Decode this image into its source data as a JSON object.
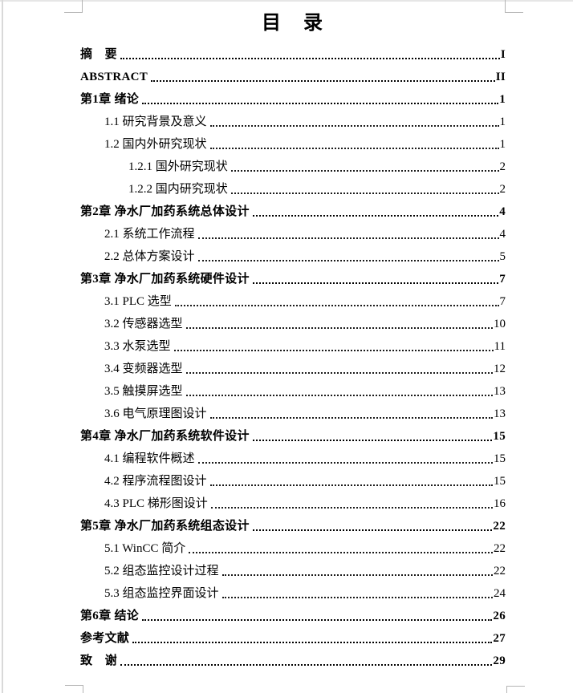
{
  "toc": {
    "title": "目　录",
    "entries": [
      {
        "label": "摘　要",
        "page": "I",
        "level": 1,
        "bold": true
      },
      {
        "label": "ABSTRACT",
        "page": "II",
        "level": 1,
        "bold": true
      },
      {
        "label": "第1章 绪论",
        "page": "1",
        "level": 1,
        "bold": true
      },
      {
        "label": "1.1 研究背景及意义",
        "page": "1",
        "level": 2,
        "bold": false
      },
      {
        "label": "1.2 国内外研究现状",
        "page": "1",
        "level": 2,
        "bold": false
      },
      {
        "label": "1.2.1 国外研究现状",
        "page": "2",
        "level": 3,
        "bold": false
      },
      {
        "label": "1.2.2 国内研究现状",
        "page": "2",
        "level": 3,
        "bold": false
      },
      {
        "label": "第2章 净水厂加药系统总体设计",
        "page": "4",
        "level": 1,
        "bold": true
      },
      {
        "label": "2.1 系统工作流程",
        "page": "4",
        "level": 2,
        "bold": false
      },
      {
        "label": "2.2 总体方案设计",
        "page": "5",
        "level": 2,
        "bold": false
      },
      {
        "label": "第3章 净水厂加药系统硬件设计",
        "page": "7",
        "level": 1,
        "bold": true
      },
      {
        "label": "3.1 PLC 选型",
        "page": "7",
        "level": 2,
        "bold": false
      },
      {
        "label": "3.2 传感器选型",
        "page": "10",
        "level": 2,
        "bold": false
      },
      {
        "label": "3.3 水泵选型",
        "page": "11",
        "level": 2,
        "bold": false
      },
      {
        "label": "3.4 变频器选型",
        "page": "12",
        "level": 2,
        "bold": false
      },
      {
        "label": "3.5 触摸屏选型",
        "page": "13",
        "level": 2,
        "bold": false
      },
      {
        "label": "3.6 电气原理图设计",
        "page": "13",
        "level": 2,
        "bold": false
      },
      {
        "label": "第4章 净水厂加药系统软件设计",
        "page": "15",
        "level": 1,
        "bold": true
      },
      {
        "label": "4.1 编程软件概述",
        "page": "15",
        "level": 2,
        "bold": false
      },
      {
        "label": "4.2 程序流程图设计",
        "page": "15",
        "level": 2,
        "bold": false
      },
      {
        "label": "4.3 PLC 梯形图设计",
        "page": "16",
        "level": 2,
        "bold": false
      },
      {
        "label": "第5章 净水厂加药系统组态设计",
        "page": "22",
        "level": 1,
        "bold": true
      },
      {
        "label": "5.1 WinCC 简介",
        "page": "22",
        "level": 2,
        "bold": false
      },
      {
        "label": "5.2 组态监控设计过程",
        "page": "22",
        "level": 2,
        "bold": false
      },
      {
        "label": "5.3 组态监控界面设计",
        "page": "24",
        "level": 2,
        "bold": false
      },
      {
        "label": "第6章 结论",
        "page": "26",
        "level": 1,
        "bold": true
      },
      {
        "label": "参考文献",
        "page": "27",
        "level": 1,
        "bold": true
      },
      {
        "label": "致　谢",
        "page": "29",
        "level": 1,
        "bold": true
      }
    ]
  }
}
